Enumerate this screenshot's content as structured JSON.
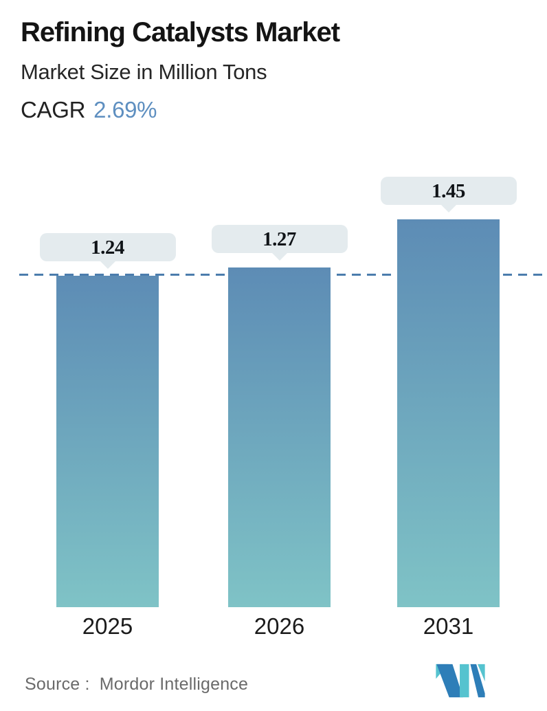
{
  "header": {
    "title": "Refining Catalysts Market",
    "subtitle": "Market Size in Million Tons",
    "cagr_label": "CAGR",
    "cagr_value": "2.69%"
  },
  "chart_data": {
    "type": "bar",
    "title": "Refining Catalysts Market",
    "subtitle": "Market Size in Million Tons",
    "unit": "Million Tons",
    "cagr": "2.69%",
    "categories": [
      "2025",
      "2026",
      "2031"
    ],
    "values": [
      1.24,
      1.27,
      1.45
    ],
    "labels": [
      "1.24",
      "1.27",
      "1.45"
    ],
    "reference_line": 1.24,
    "ylim": [
      0,
      1.6
    ],
    "grid": false,
    "legend": false,
    "source_label": "Source :",
    "source_value": "Mordor Intelligence"
  },
  "footer": {
    "source_label": "Source :",
    "source_value": "Mordor Intelligence"
  },
  "colors": {
    "bar_top": "#5d8cb5",
    "bar_bottom": "#7fc3c6",
    "reference_dash": "#4c7dad",
    "bubble_bg": "#e4ebee",
    "cagr_accent": "#5e8fc0",
    "title_text": "#141414",
    "axis_label": "#1b1b1b",
    "source_text": "#6a6a6a",
    "logo_blue": "#2e7eb8",
    "logo_teal": "#55c3cf"
  }
}
